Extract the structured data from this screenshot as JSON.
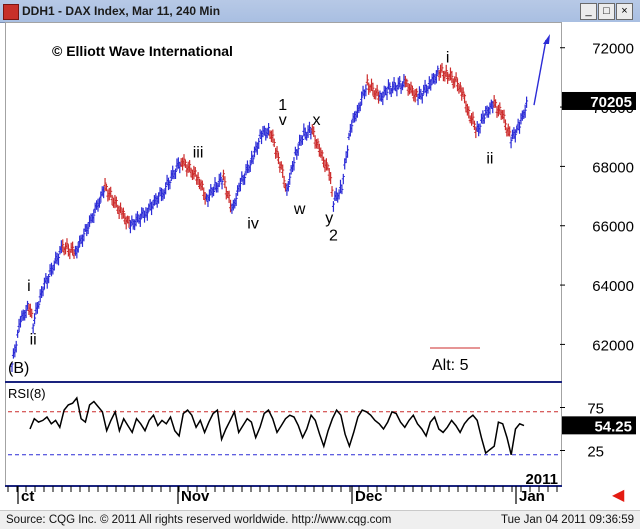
{
  "window": {
    "title": "DDH1 - DAX Index, Mar 11, 240 Min",
    "buttons": [
      "_",
      "□",
      "×"
    ]
  },
  "footer": {
    "source": "Source: CQG Inc. © 2011 All rights reserved worldwide. http://www.cqg.com",
    "timestamp": "Tue Jan 04 2011 09:36:59"
  },
  "chart_data": [
    {
      "type": "bar",
      "style": "OHLC price bars, blue = up swing, red = down swing",
      "copyright": "© Elliott Wave International",
      "y_ticks": [
        62000,
        64000,
        66000,
        68000,
        70000,
        72000
      ],
      "y_tick_labels": [
        "62000",
        "64000",
        "66000",
        "68000",
        "70000",
        "72000"
      ],
      "ylim": [
        60800,
        72800
      ],
      "last_price": "70205",
      "x_labels": [
        "ct",
        "Nov",
        "Dec",
        "Jan"
      ],
      "year_label": "2011",
      "colors": {
        "up": "#2b2bd6",
        "down": "#cc2b2b",
        "label_box": "#000000"
      },
      "price_path": [
        [
          0,
          61300
        ],
        [
          2,
          62800
        ],
        [
          4,
          63300
        ],
        [
          5,
          62700
        ],
        [
          7,
          63800
        ],
        [
          12,
          65300
        ],
        [
          15,
          65100
        ],
        [
          20,
          66600
        ],
        [
          22,
          67300
        ],
        [
          26,
          66400
        ],
        [
          28,
          66000
        ],
        [
          32,
          66500
        ],
        [
          36,
          67200
        ],
        [
          40,
          68200
        ],
        [
          44,
          67600
        ],
        [
          46,
          66900
        ],
        [
          48,
          67300
        ],
        [
          50,
          67600
        ],
        [
          52,
          66500
        ],
        [
          54,
          67400
        ],
        [
          57,
          68300
        ],
        [
          59,
          69100
        ],
        [
          61,
          69200
        ],
        [
          63,
          68300
        ],
        [
          65,
          67200
        ],
        [
          67,
          68400
        ],
        [
          69,
          69100
        ],
        [
          71,
          69200
        ],
        [
          73,
          68400
        ],
        [
          75,
          67800
        ],
        [
          76,
          66800
        ],
        [
          78,
          67300
        ],
        [
          80,
          69300
        ],
        [
          82,
          70000
        ],
        [
          84,
          70800
        ],
        [
          87,
          70300
        ],
        [
          89,
          70600
        ],
        [
          93,
          70800
        ],
        [
          96,
          70300
        ],
        [
          99,
          70800
        ],
        [
          101,
          71200
        ],
        [
          103,
          71100
        ],
        [
          106,
          70700
        ],
        [
          108,
          69800
        ],
        [
          110,
          69200
        ],
        [
          112,
          69800
        ],
        [
          114,
          70100
        ],
        [
          116,
          69700
        ],
        [
          118,
          68900
        ],
        [
          120,
          69400
        ],
        [
          122,
          70200
        ]
      ],
      "wave_labels": [
        {
          "text": "i",
          "x": 4,
          "y": 63800
        },
        {
          "text": "ii",
          "x": 5,
          "y": 62000
        },
        {
          "text": "iii",
          "x": 44,
          "y": 68300
        },
        {
          "text": "iv",
          "x": 57,
          "y": 65900
        },
        {
          "text": "1",
          "x": 64,
          "y": 69900
        },
        {
          "text": "v",
          "x": 64,
          "y": 69400
        },
        {
          "text": "w",
          "x": 68,
          "y": 66400
        },
        {
          "text": "x",
          "x": 72,
          "y": 69400
        },
        {
          "text": "y",
          "x": 75,
          "y": 66100
        },
        {
          "text": "2",
          "x": 76,
          "y": 65500
        },
        {
          "text": "i",
          "x": 103,
          "y": 71500
        },
        {
          "text": "ii",
          "x": 113,
          "y": 68100
        }
      ],
      "annotations": [
        "(B)",
        "Alt: 5"
      ]
    },
    {
      "type": "line",
      "title": "RSI(8)",
      "y_ticks": [
        25,
        75
      ],
      "y_tick_labels": [
        "25",
        "75"
      ],
      "ylim": [
        0,
        100
      ],
      "reference_lines": [
        70,
        20
      ],
      "last_value": "54.25",
      "values": [
        50,
        62,
        58,
        60,
        64,
        56,
        60,
        52,
        72,
        78,
        80,
        86,
        62,
        58,
        78,
        82,
        76,
        70,
        48,
        60,
        70,
        48,
        62,
        54,
        46,
        62,
        56,
        48,
        60,
        66,
        54,
        60,
        56,
        64,
        48,
        42,
        68,
        72,
        66,
        52,
        60,
        46,
        58,
        68,
        72,
        38,
        50,
        60,
        70,
        46,
        54,
        62,
        58,
        40,
        52,
        68,
        72,
        62,
        46,
        54,
        62,
        66,
        64,
        54,
        40,
        50,
        66,
        60,
        44,
        30,
        48,
        62,
        72,
        66,
        44,
        30,
        46,
        64,
        72,
        70,
        66,
        60,
        56,
        50,
        58,
        70,
        68,
        58,
        52,
        60,
        66,
        56,
        50,
        42,
        58,
        64,
        50,
        46,
        52,
        60,
        54,
        46,
        56,
        62,
        66,
        60,
        40,
        22,
        26,
        30,
        58,
        56,
        40,
        20,
        50,
        56,
        54
      ]
    }
  ]
}
